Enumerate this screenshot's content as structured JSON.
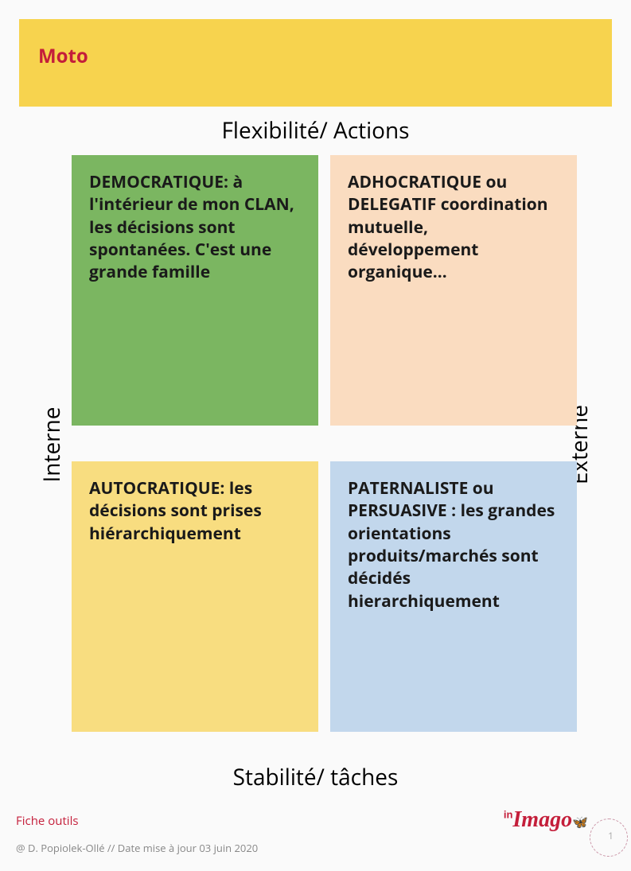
{
  "header": {
    "title": "Moto",
    "background_color": "#f7d34e",
    "title_color": "#c41e3a"
  },
  "diagram": {
    "type": "quadrant",
    "axes": {
      "top": "Flexibilité/ Actions",
      "bottom": "Stabilité/ tâches",
      "left": "Interne",
      "right": "Externe",
      "axis_fontsize": 28,
      "axis_color": "#000000"
    },
    "quadrants": {
      "top_left": {
        "text": "DEMOCRATIQUE: à l'intérieur de mon CLAN, les décisions sont spontanées. C'est une grande famille",
        "background_color": "#7bb661"
      },
      "top_right": {
        "text": "ADHOCRATIQUE ou DELEGATIF\n coordination mutuelle, développement organique…",
        "background_color": "#fadcc0"
      },
      "bottom_left": {
        "text": "AUTOCRATIQUE: les décisions sont prises hiérarchiquement",
        "background_color": "#f8dd80"
      },
      "bottom_right": {
        "text": "PATERNALISTE ou PERSUASIVE : les grandes orientations produits/marchés sont décidés hierarchiquement",
        "background_color": "#c2d7ec"
      }
    },
    "quadrant_fontsize": 21,
    "quadrant_fontweight": 700,
    "quadrant_text_color": "#1a1a1a",
    "background_color": "#fafafa"
  },
  "footer": {
    "label": "Fiche outils",
    "label_color": "#c41e3a",
    "credit": "@ D. Popiolek-Ollé // Date mise à jour 03 juin 2020",
    "credit_color": "#888888",
    "page_number": "1"
  },
  "logo": {
    "prefix": "in",
    "main": "Imago",
    "suffix": "🦋",
    "color": "#c41e3a",
    "suffix_color": "#f0a030"
  }
}
